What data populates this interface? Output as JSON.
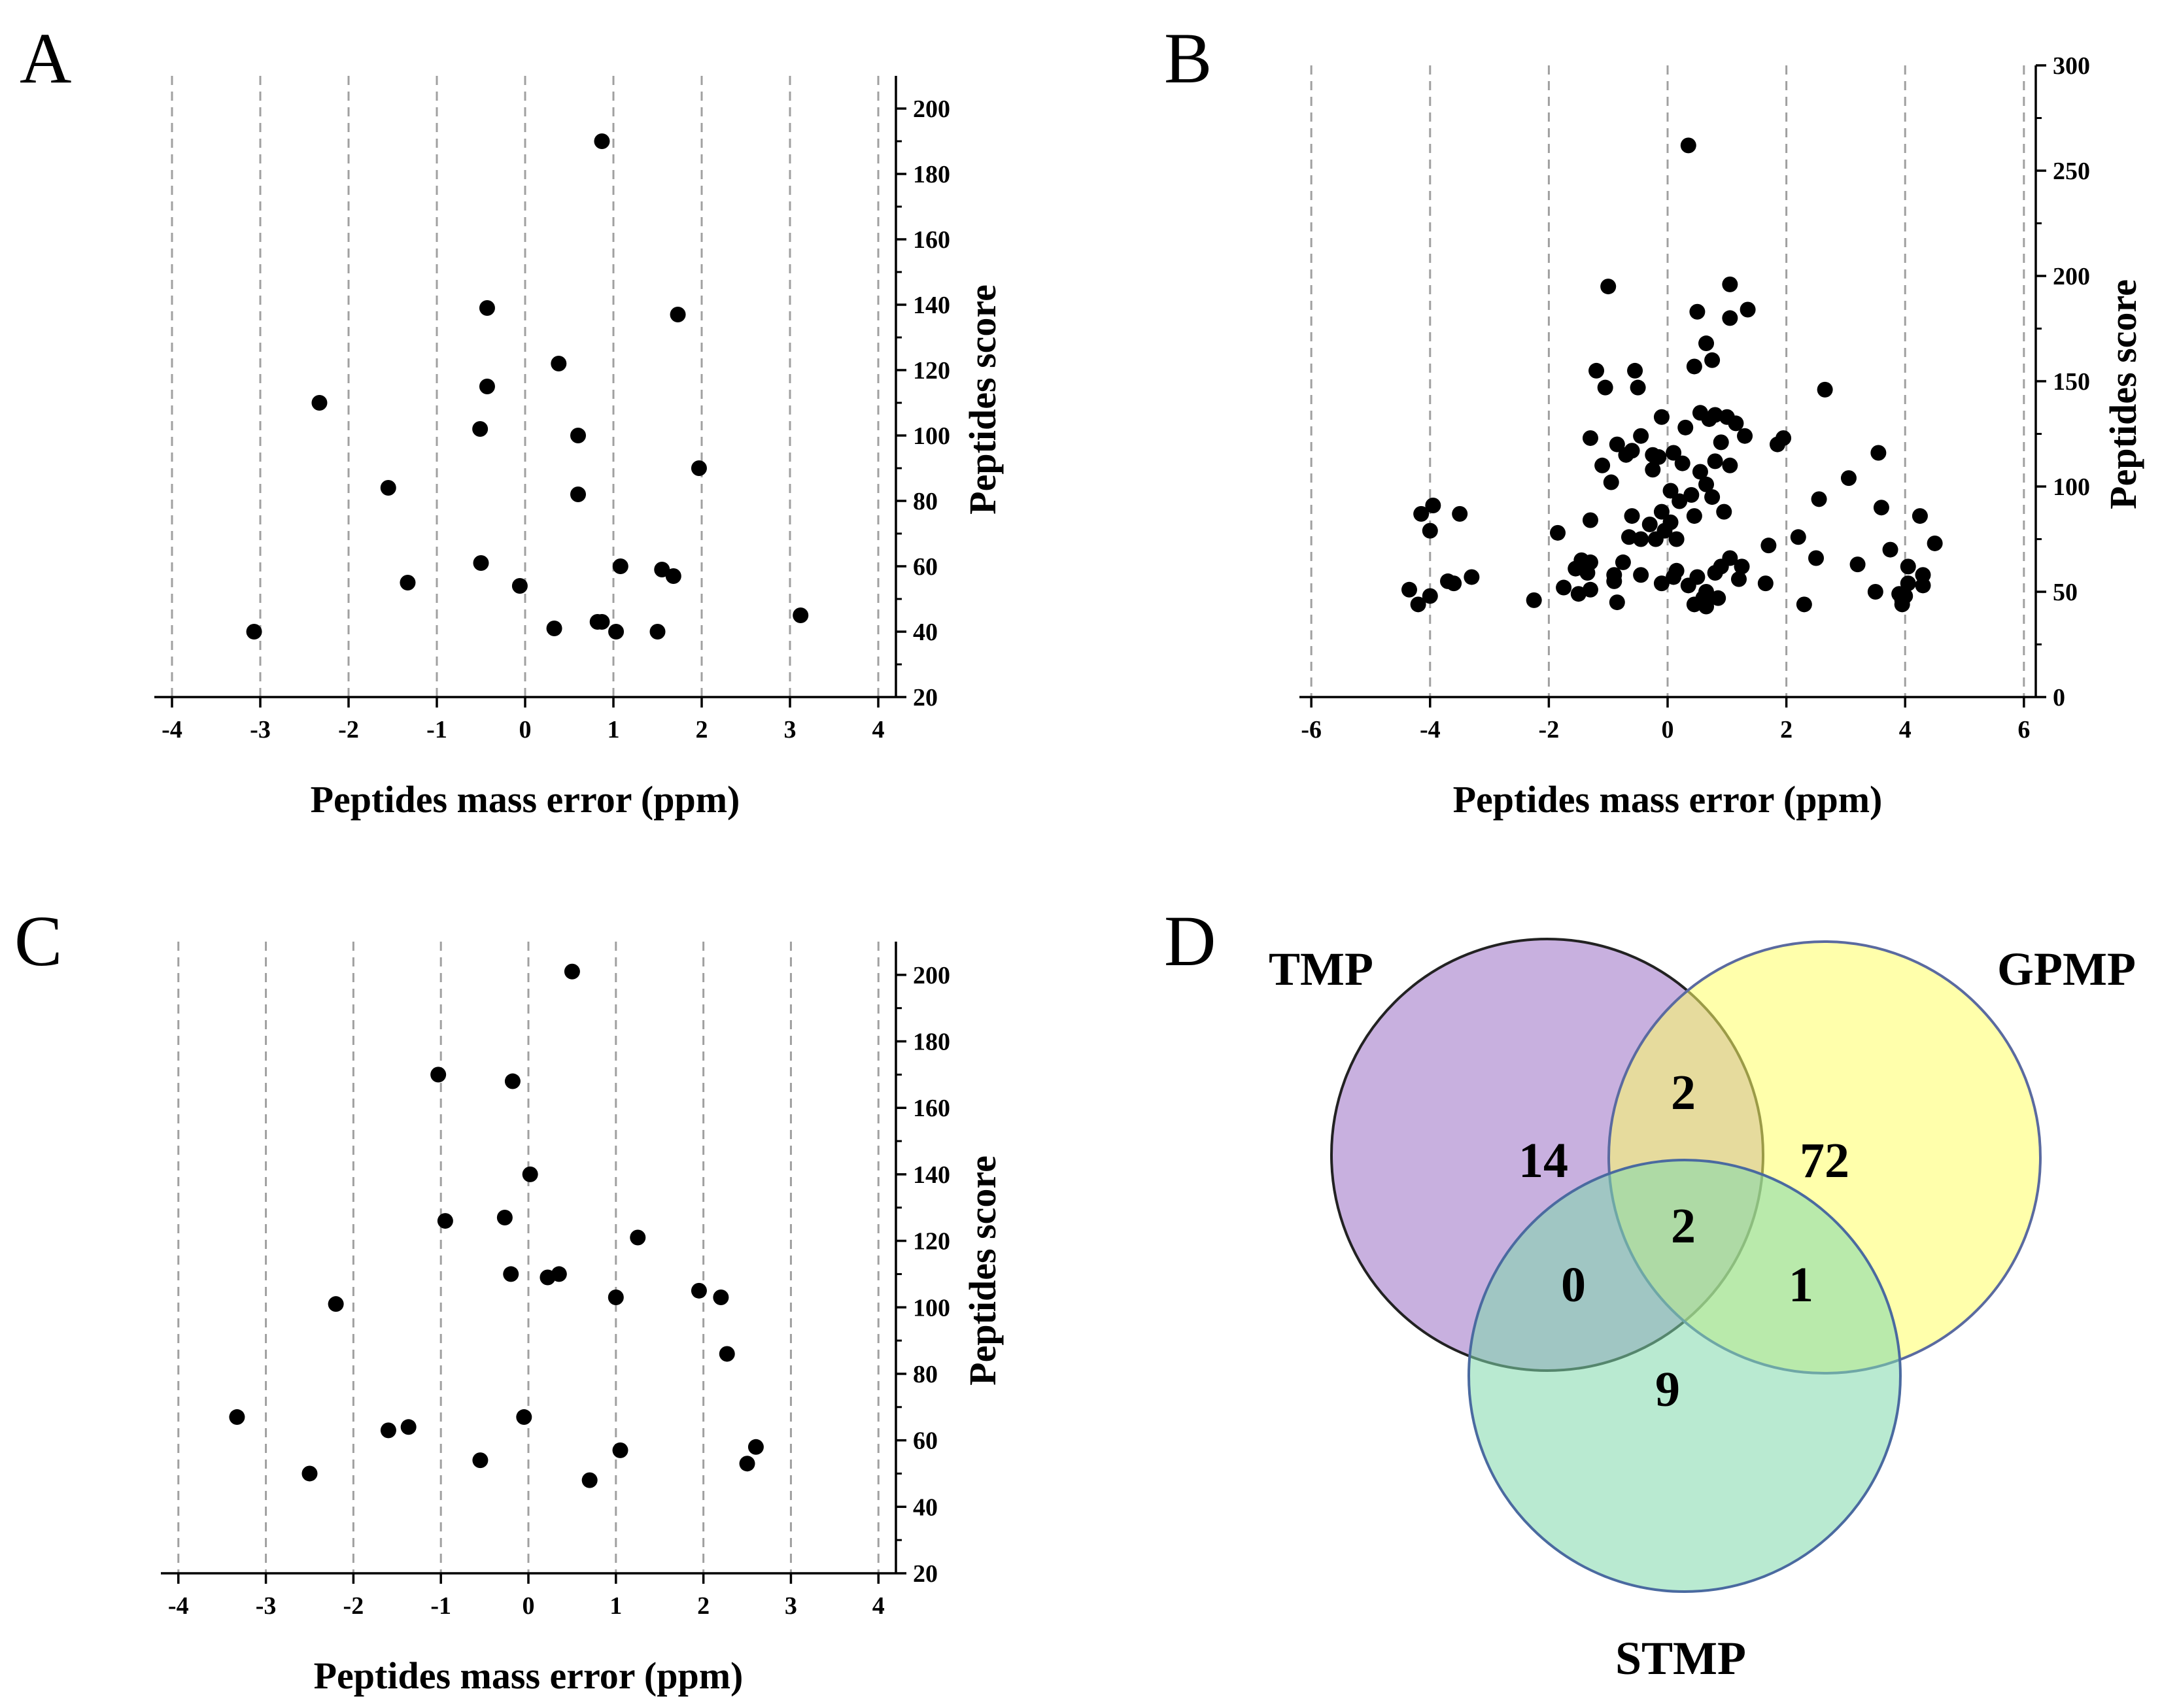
{
  "colors": {
    "marker": "#000000",
    "grid": "#a0a0a0",
    "tmp_fill": "#9b6fc4",
    "gpmp_fill": "#ffff66",
    "stmp_fill": "#7fd9ac",
    "tmp_stroke": "#222222",
    "gpmp_stroke": "#5a6aa0",
    "stmp_stroke": "#4a6aa0"
  },
  "chart_data": [
    {
      "id": "A",
      "type": "scatter",
      "panel_label": "A",
      "xlabel": "Peptides mass error (ppm)",
      "ylabel": "Peptides score",
      "xlim": [
        -4.2,
        4.2
      ],
      "ylim": [
        20,
        210
      ],
      "xticks": [
        -4,
        -3,
        -2,
        -1,
        0,
        1,
        2,
        3,
        4
      ],
      "yticks": [
        20,
        40,
        60,
        80,
        100,
        120,
        140,
        160,
        180,
        200
      ],
      "xtick_labels": [
        "-4",
        "-3",
        "-2",
        "-1",
        "0",
        "1",
        "2",
        "3",
        "4"
      ],
      "ytick_labels": [
        "20",
        "40",
        "60",
        "80",
        "100",
        "120",
        "140",
        "160",
        "180",
        "200"
      ],
      "grid": "vertical-dashed",
      "y_axis_side": "right",
      "points": [
        [
          0.87,
          190
        ],
        [
          -0.43,
          139
        ],
        [
          1.73,
          137
        ],
        [
          0.38,
          122
        ],
        [
          -2.33,
          110
        ],
        [
          -0.43,
          115
        ],
        [
          -0.51,
          102
        ],
        [
          0.6,
          100
        ],
        [
          1.97,
          90
        ],
        [
          -1.55,
          84
        ],
        [
          0.6,
          82
        ],
        [
          -0.5,
          61
        ],
        [
          1.08,
          60
        ],
        [
          1.55,
          59
        ],
        [
          1.68,
          57
        ],
        [
          -1.33,
          55
        ],
        [
          -0.06,
          54
        ],
        [
          0.82,
          43
        ],
        [
          0.87,
          43
        ],
        [
          0.33,
          41
        ],
        [
          1.03,
          40
        ],
        [
          1.5,
          40
        ],
        [
          -3.07,
          40
        ],
        [
          3.12,
          45
        ]
      ]
    },
    {
      "id": "B",
      "type": "scatter",
      "panel_label": "B",
      "xlabel": "Peptides mass error (ppm)",
      "ylabel": "Peptides score",
      "xlim": [
        -6.2,
        6.2
      ],
      "ylim": [
        0,
        300
      ],
      "xticks": [
        -6,
        -4,
        -2,
        0,
        2,
        4,
        6
      ],
      "yticks": [
        0,
        50,
        100,
        150,
        200,
        250,
        300
      ],
      "xtick_labels": [
        "-6",
        "-4",
        "-2",
        "0",
        "2",
        "4",
        "6"
      ],
      "ytick_labels": [
        "0",
        "50",
        "100",
        "150",
        "200",
        "250",
        "300"
      ],
      "grid": "vertical-dashed",
      "y_axis_side": "right",
      "points": [
        [
          0.35,
          262
        ],
        [
          -1.0,
          195
        ],
        [
          1.05,
          196
        ],
        [
          1.35,
          184
        ],
        [
          0.5,
          183
        ],
        [
          1.05,
          180
        ],
        [
          0.65,
          168
        ],
        [
          0.75,
          160
        ],
        [
          0.45,
          157
        ],
        [
          -1.2,
          155
        ],
        [
          -0.55,
          155
        ],
        [
          -1.05,
          147
        ],
        [
          -0.5,
          147
        ],
        [
          2.65,
          146
        ],
        [
          0.8,
          134
        ],
        [
          0.55,
          135
        ],
        [
          1.0,
          133
        ],
        [
          0.7,
          132
        ],
        [
          1.15,
          130
        ],
        [
          -0.1,
          133
        ],
        [
          0.3,
          128
        ],
        [
          -0.45,
          124
        ],
        [
          1.3,
          124
        ],
        [
          1.95,
          123
        ],
        [
          1.85,
          120
        ],
        [
          -1.3,
          123
        ],
        [
          -0.85,
          120
        ],
        [
          0.9,
          121
        ],
        [
          -0.6,
          117
        ],
        [
          -0.7,
          115
        ],
        [
          -0.25,
          115
        ],
        [
          -0.15,
          114
        ],
        [
          0.1,
          116
        ],
        [
          0.8,
          112
        ],
        [
          1.05,
          110
        ],
        [
          0.25,
          111
        ],
        [
          -1.1,
          110
        ],
        [
          -0.25,
          108
        ],
        [
          0.55,
          107
        ],
        [
          3.55,
          116
        ],
        [
          -0.95,
          102
        ],
        [
          0.65,
          101
        ],
        [
          0.05,
          98
        ],
        [
          0.4,
          96
        ],
        [
          0.75,
          95
        ],
        [
          3.05,
          104
        ],
        [
          2.55,
          94
        ],
        [
          0.2,
          93
        ],
        [
          -0.1,
          88
        ],
        [
          0.95,
          88
        ],
        [
          -0.6,
          86
        ],
        [
          0.45,
          86
        ],
        [
          3.6,
          90
        ],
        [
          -3.5,
          87
        ],
        [
          -4.15,
          87
        ],
        [
          -3.95,
          91
        ],
        [
          0.05,
          83
        ],
        [
          -0.3,
          82
        ],
        [
          -1.3,
          84
        ],
        [
          -0.05,
          79
        ],
        [
          -4.0,
          79
        ],
        [
          -0.65,
          76
        ],
        [
          -0.45,
          75
        ],
        [
          -0.2,
          75
        ],
        [
          0.15,
          75
        ],
        [
          -1.85,
          78
        ],
        [
          2.2,
          76
        ],
        [
          4.25,
          86
        ],
        [
          -1.45,
          65
        ],
        [
          -1.3,
          64
        ],
        [
          -0.75,
          64
        ],
        [
          0.15,
          60
        ],
        [
          0.9,
          62
        ],
        [
          1.05,
          66
        ],
        [
          1.25,
          62
        ],
        [
          1.7,
          72
        ],
        [
          4.5,
          73
        ],
        [
          2.5,
          66
        ],
        [
          3.75,
          70
        ],
        [
          -1.55,
          61
        ],
        [
          -1.35,
          59
        ],
        [
          -0.9,
          58
        ],
        [
          -0.45,
          58
        ],
        [
          0.1,
          57
        ],
        [
          0.5,
          57
        ],
        [
          0.8,
          59
        ],
        [
          1.2,
          56
        ],
        [
          3.2,
          63
        ],
        [
          4.05,
          62
        ],
        [
          -3.3,
          57
        ],
        [
          -3.7,
          55
        ],
        [
          -3.6,
          54
        ],
        [
          -0.9,
          55
        ],
        [
          -0.1,
          54
        ],
        [
          0.35,
          53
        ],
        [
          1.65,
          54
        ],
        [
          4.3,
          58
        ],
        [
          4.05,
          54
        ],
        [
          4.3,
          53
        ],
        [
          -1.5,
          49
        ],
        [
          -1.3,
          51
        ],
        [
          -1.75,
          52
        ],
        [
          3.5,
          50
        ],
        [
          3.9,
          49
        ],
        [
          4.0,
          48
        ],
        [
          3.95,
          46
        ],
        [
          -4.35,
          51
        ],
        [
          -4.0,
          48
        ],
        [
          -4.2,
          44
        ],
        [
          -2.25,
          46
        ],
        [
          -0.85,
          45
        ],
        [
          0.45,
          44
        ],
        [
          0.65,
          43
        ],
        [
          0.6,
          47
        ],
        [
          0.65,
          50
        ],
        [
          0.85,
          47
        ],
        [
          2.3,
          44
        ],
        [
          3.95,
          44
        ]
      ]
    },
    {
      "id": "C",
      "type": "scatter",
      "panel_label": "C",
      "xlabel": "Peptides mass error (ppm)",
      "ylabel": "Peptides score",
      "xlim": [
        -4.2,
        4.2
      ],
      "ylim": [
        20,
        210
      ],
      "xticks": [
        -4,
        -3,
        -2,
        -1,
        0,
        1,
        2,
        3,
        4
      ],
      "yticks": [
        20,
        40,
        60,
        80,
        100,
        120,
        140,
        160,
        180,
        200
      ],
      "xtick_labels": [
        "-4",
        "-3",
        "-2",
        "-1",
        "0",
        "1",
        "2",
        "3",
        "4"
      ],
      "ytick_labels": [
        "20",
        "40",
        "60",
        "80",
        "100",
        "120",
        "140",
        "160",
        "180",
        "200"
      ],
      "grid": "vertical-dashed",
      "y_axis_side": "right",
      "points": [
        [
          0.5,
          201
        ],
        [
          -1.03,
          170
        ],
        [
          -0.18,
          168
        ],
        [
          0.02,
          140
        ],
        [
          -0.95,
          126
        ],
        [
          -0.27,
          127
        ],
        [
          1.25,
          121
        ],
        [
          -0.2,
          110
        ],
        [
          0.22,
          109
        ],
        [
          0.35,
          110
        ],
        [
          1.95,
          105
        ],
        [
          2.2,
          103
        ],
        [
          1.0,
          103
        ],
        [
          -2.2,
          101
        ],
        [
          2.27,
          86
        ],
        [
          -3.33,
          67
        ],
        [
          -0.05,
          67
        ],
        [
          -1.6,
          63
        ],
        [
          -1.37,
          64
        ],
        [
          2.6,
          58
        ],
        [
          1.05,
          57
        ],
        [
          2.5,
          53
        ],
        [
          -0.55,
          54
        ],
        [
          -2.5,
          50
        ],
        [
          0.7,
          48
        ]
      ]
    },
    {
      "id": "D",
      "type": "venn",
      "panel_label": "D",
      "sets": [
        "TMP",
        "GPMP",
        "STMP"
      ],
      "regions": {
        "TMP_only": 14,
        "GPMP_only": 72,
        "STMP_only": 9,
        "TMP_GPMP": 2,
        "TMP_STMP": 0,
        "GPMP_STMP": 1,
        "TMP_GPMP_STMP": 2
      }
    }
  ]
}
